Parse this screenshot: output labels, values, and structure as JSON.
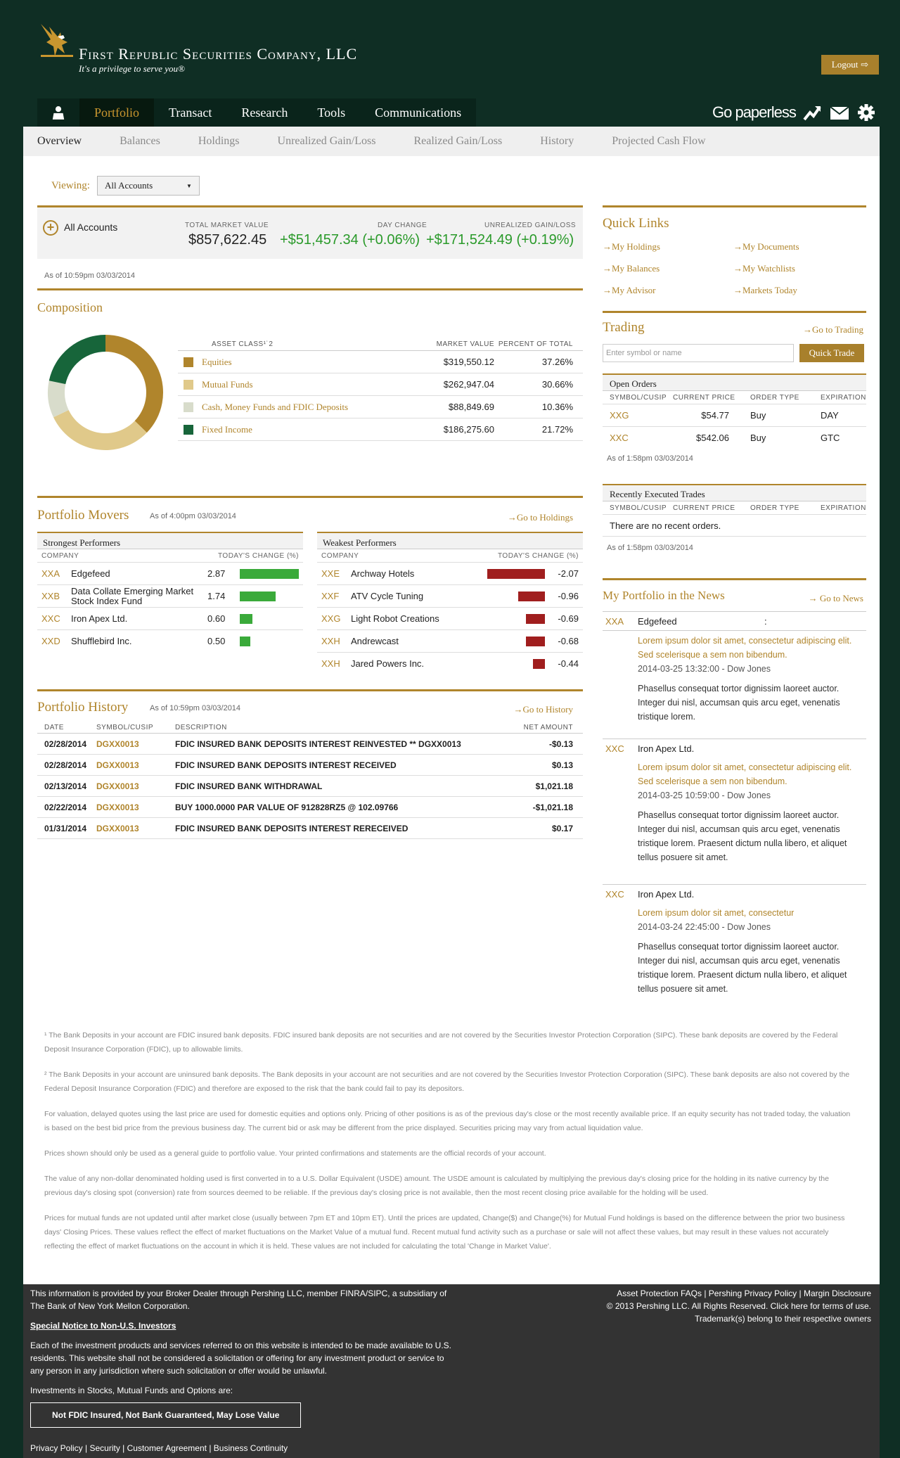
{
  "brand": {
    "name": "First Republic Securities Company, LLC",
    "tagline": "It's a privilege to serve you®"
  },
  "header": {
    "logout_label": "Logout",
    "go_paperless": "Go paperless"
  },
  "main_nav": [
    "Portfolio",
    "Transact",
    "Research",
    "Tools",
    "Communications"
  ],
  "sub_nav": [
    "Overview",
    "Balances",
    "Holdings",
    "Unrealized Gain/Loss",
    "Realized Gain/Loss",
    "History",
    "Projected Cash Flow"
  ],
  "viewing": {
    "label": "Viewing:",
    "selected": "All Accounts"
  },
  "summary": {
    "name": "All Accounts",
    "tmv_label": "TOTAL MARKET VALUE",
    "tmv": "$857,622.45",
    "dc_label": "DAY CHANGE",
    "dc": "+$51,457.34 (+0.06%)",
    "ugl_label": "UNREALIZED GAIN/LOSS",
    "ugl": "+$171,524.49 (+0.19%)",
    "as_of": "As of 10:59pm 03/03/2014"
  },
  "composition": {
    "title": "Composition",
    "headers": [
      "ASSET CLASS¹˙2",
      "MARKET VALUE",
      "PERCENT OF TOTAL"
    ],
    "rows": [
      {
        "cls": "Equities",
        "mv": "$319,550.12",
        "pct": "37.26%",
        "color": "#b0852c",
        "value": 37.26
      },
      {
        "cls": "Mutual Funds",
        "mv": "$262,947.04",
        "pct": "30.66%",
        "color": "#e0c98a",
        "value": 30.66
      },
      {
        "cls": "Cash, Money Funds and FDIC Deposits",
        "mv": "$88,849.69",
        "pct": "10.36%",
        "color": "#d8dccb",
        "value": 10.36
      },
      {
        "cls": "Fixed Income",
        "mv": "$186,275.60",
        "pct": "21.72%",
        "color": "#17653a",
        "value": 21.72
      }
    ]
  },
  "movers": {
    "title": "Portfolio Movers",
    "as_of": "As of 4:00pm 03/03/2014",
    "link": "→Go to Holdings",
    "col_company": "COMPANY",
    "col_change": "TODAY'S CHANGE (%)",
    "strongest_title": "Strongest Performers",
    "strongest": [
      {
        "sym": "XXA",
        "co": "Edgefeed",
        "chg": "2.87",
        "v": 2.87
      },
      {
        "sym": "XXB",
        "co": "Data Collate Emerging Market Stock Index Fund",
        "chg": "1.74",
        "v": 1.74
      },
      {
        "sym": "XXC",
        "co": "Iron Apex Ltd.",
        "chg": "0.60",
        "v": 0.6
      },
      {
        "sym": "XXD",
        "co": "Shufflebird Inc.",
        "chg": "0.50",
        "v": 0.5
      }
    ],
    "weakest_title": "Weakest Performers",
    "weakest": [
      {
        "sym": "XXE",
        "co": "Archway Hotels",
        "chg": "-2.07",
        "v": 2.07
      },
      {
        "sym": "XXF",
        "co": "ATV Cycle Tuning",
        "chg": "-0.96",
        "v": 0.96
      },
      {
        "sym": "XXG",
        "co": "Light Robot Creations",
        "chg": "-0.69",
        "v": 0.69
      },
      {
        "sym": "XXH",
        "co": "Andrewcast",
        "chg": "-0.68",
        "v": 0.68
      },
      {
        "sym": "XXH",
        "co": "Jared Powers Inc.",
        "chg": "-0.44",
        "v": 0.44
      }
    ]
  },
  "history": {
    "title": "Portfolio History",
    "as_of": "As of 10:59pm 03/03/2014",
    "link": "→Go to History",
    "headers": [
      "DATE",
      "SYMBOL/CUSIP",
      "DESCRIPTION",
      "NET AMOUNT"
    ],
    "rows": [
      {
        "date": "02/28/2014",
        "sym": "DGXX0013",
        "desc": "FDIC INSURED BANK DEPOSITS INTEREST REINVESTED ** DGXX0013",
        "amt": "-$0.13"
      },
      {
        "date": "02/28/2014",
        "sym": "DGXX0013",
        "desc": "FDIC INSURED BANK DEPOSITS INTEREST RECEIVED",
        "amt": "$0.13"
      },
      {
        "date": "02/13/2014",
        "sym": "DGXX0013",
        "desc": "FDIC INSURED BANK WITHDRAWAL",
        "amt": "$1,021.18"
      },
      {
        "date": "02/22/2014",
        "sym": "DGXX0013",
        "desc": "BUY 1000.0000 PAR VALUE OF 912828RZ5 @ 102.09766",
        "amt": "-$1,021.18"
      },
      {
        "date": "01/31/2014",
        "sym": "DGXX0013",
        "desc": "FDIC INSURED BANK DEPOSITS INTEREST RERECEIVED",
        "amt": "$0.17"
      }
    ]
  },
  "quick_links": {
    "title": "Quick Links",
    "items": [
      "→My Holdings",
      "→My Documents",
      "→My Balances",
      "→My Watchlists",
      "→My Advisor",
      "→Markets Today"
    ]
  },
  "trading": {
    "title": "Trading",
    "link": "→Go to Trading",
    "placeholder": "Enter symbol or name",
    "button": "Quick Trade",
    "open_title": "Open Orders",
    "cols": [
      "SYMBOL/CUSIP",
      "CURRENT PRICE",
      "ORDER TYPE",
      "EXPIRATION"
    ],
    "open": [
      {
        "sym": "XXG",
        "price": "$54.77",
        "type": "Buy",
        "exp": "DAY"
      },
      {
        "sym": "XXC",
        "price": "$542.06",
        "type": "Buy",
        "exp": "GTC"
      }
    ],
    "open_asof": "As of 1:58pm 03/03/2014",
    "recent_title": "Recently Executed Trades",
    "recent_empty": "There are no recent orders.",
    "recent_asof": "As of 1:58pm 03/03/2014"
  },
  "news": {
    "title": "My Portfolio in the News",
    "link": "→ Go to News",
    "items": [
      {
        "sym": "XXA",
        "co": "Edgefeed",
        "colon": ":",
        "title": "Lorem ipsum dolor sit amet, consectetur adipiscing elit. Sed scelerisque a sem non bibendum.",
        "meta": "2014-03-25 13:32:00 - Dow Jones",
        "text": "Phasellus consequat tortor dignissim laoreet auctor. Integer dui nisl, accumsan quis arcu eget, venenatis tristique lorem."
      },
      {
        "sym": "XXC",
        "co": "Iron Apex Ltd.",
        "title": "Lorem ipsum dolor sit amet, consectetur adipiscing elit. Sed scelerisque a sem non bibendum.",
        "meta": "2014-03-25 10:59:00 - Dow Jones",
        "text": "Phasellus consequat tortor dignissim laoreet auctor. Integer dui nisl, accumsan quis arcu eget, venenatis tristique lorem. Praesent dictum nulla libero, et aliquet tellus posuere sit amet."
      },
      {
        "sym": "XXC",
        "co": "Iron Apex Ltd.",
        "title": "Lorem ipsum dolor sit amet, consectetur",
        "meta": "2014-03-24 22:45:00 - Dow Jones",
        "text": "Phasellus consequat tortor dignissim laoreet auctor. Integer dui nisl, accumsan quis arcu eget, venenatis tristique lorem. Praesent dictum nulla libero, et aliquet tellus posuere sit amet."
      }
    ]
  },
  "footnotes": [
    "¹ The Bank Deposits in your account are FDIC insured bank deposits. FDIC insured bank deposits are not securities and are not covered by the Securities Investor Protection Corporation (SIPC). These bank deposits are covered by the Federal Deposit Insurance Corporation (FDIC), up to allowable limits.",
    "² The Bank Deposits in your account are uninsured bank deposits. The Bank deposits in your account are not securities and are not covered by the Securities Investor Protection Corporation (SIPC). These bank deposits are also not covered by the Federal Deposit Insurance Corporation (FDIC) and therefore are exposed to the risk that the bank could fail to pay its depositors.",
    "For valuation, delayed quotes using the last price are used for domestic equities and options only. Pricing of other positions is as of the previous day's close or the most recently available price. If an equity security has not traded today, the valuation is based on the best bid price from the previous business day. The current bid or ask may be different from the price displayed. Securities pricing may vary from actual liquidation value.",
    "Prices shown should only be used as a general guide to portfolio value. Your printed confirmations and statements are the official records of your account.",
    "The value of any non-dollar denominated holding used is first converted in to a U.S. Dollar Equivalent (USDE) amount. The USDE amount is calculated by multiplying the previous day's closing price for the holding in its native currency by the previous day's closing spot (conversion) rate from sources deemed to be reliable. If the previous day's closing price is not available, then the most recent closing price available for the holding will be used.",
    "Prices for mutual funds are not updated until after market close (usually between 7pm ET and 10pm ET). Until the prices are updated, Change($) and Change(%) for Mutual Fund holdings is based on the difference between the prior two business days' Closing Prices. These values reflect the effect of market fluctuations on the Market Value of a mutual fund. Recent mutual fund activity such as a purchase or sale will not affect these values, but may result in these values not accurately reflecting the effect of market fluctuations on the account in which it is held. These values are not included for calculating the total 'Change in Market Value'."
  ],
  "footer": {
    "info": "This information is provided by your Broker Dealer through Pershing LLC, member FINRA/SIPC, a subsidiary of The Bank of New York Mellon Corporation.",
    "special_link": "Special Notice to Non-U.S. Investors",
    "special_text": "Each of the investment products and services referred to on this website is intended to be made available to U.S. residents. This website shall not be considered a solicitation or offering for any investment product or service to any person in any jurisdiction where such solicitation or offer would be unlawful.",
    "investments": "Investments in Stocks, Mutual Funds and Options are:",
    "fdic": "Not FDIC Insured, Not Bank Guaranteed, May Lose Value",
    "bottom_links": "Privacy Policy | Security | Customer Agreement | Business Continuity",
    "right_links": "Asset Protection FAQs | Pershing Privacy Policy | Margin Disclosure",
    "copyright": "© 2013 Pershing LLC. All Rights Reserved. Click here for terms of use.",
    "trademark": "Trademark(s) belong to their respective owners"
  }
}
